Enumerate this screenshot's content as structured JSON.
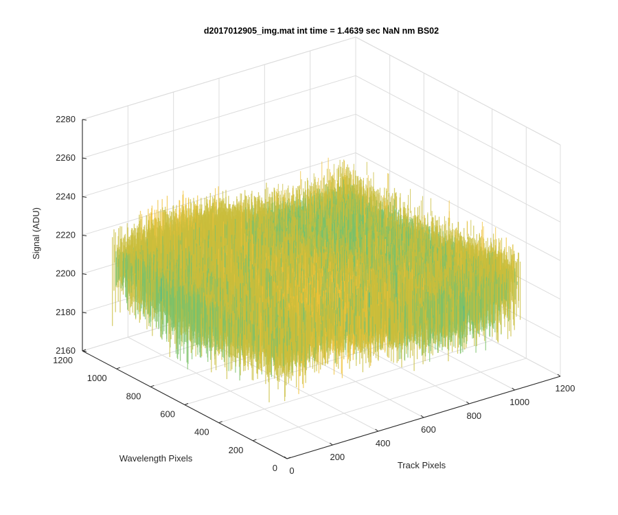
{
  "figure": {
    "background": "#ffffff"
  },
  "chart_data": {
    "type": "surface",
    "title": "d2017012905_img.mat int time = 1.4639 sec  NaN nm BS02",
    "xlabel": "Track Pixels",
    "ylabel": "Wavelength Pixels",
    "zlabel": "Signal (ADU)",
    "xlim": [
      0,
      1200
    ],
    "ylim": [
      0,
      1200
    ],
    "zlim": [
      2160,
      2280
    ],
    "x_ticks": [
      0,
      200,
      400,
      600,
      800,
      1000,
      1200
    ],
    "y_ticks": [
      0,
      200,
      400,
      600,
      800,
      1000,
      1200
    ],
    "z_ticks": [
      2160,
      2180,
      2200,
      2220,
      2240,
      2260,
      2280
    ],
    "x_tick_labels": [
      "0",
      "200",
      "400",
      "600",
      "800",
      "1000",
      "1200"
    ],
    "y_tick_labels": [
      "0",
      "200",
      "400",
      "600",
      "800",
      "1000",
      "1200"
    ],
    "z_tick_labels": [
      "2160",
      "2180",
      "2200",
      "2220",
      "2240",
      "2260",
      "2280"
    ],
    "surface_extent": {
      "x": [
        0,
        1024
      ],
      "y": [
        0,
        1024
      ]
    },
    "mean_signal": 2215,
    "signal_range": [
      2165,
      2250
    ],
    "grid": true,
    "colormap": [
      "#0f82cf",
      "#1fa0c4",
      "#33b7a5",
      "#7cc16a",
      "#c9bd3c",
      "#f0c23a"
    ]
  }
}
